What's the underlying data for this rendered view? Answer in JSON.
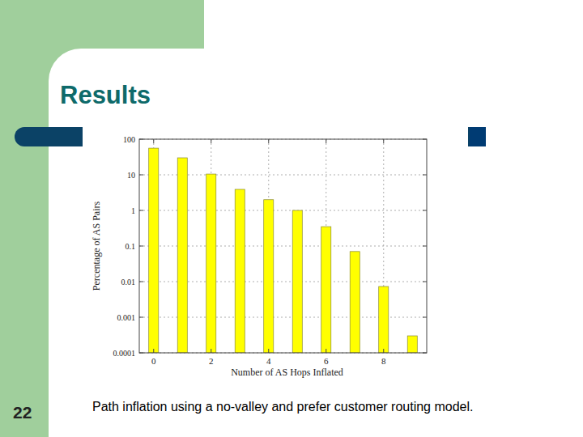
{
  "slide": {
    "title": "Results",
    "page_number": "22",
    "caption": "Path inflation using a no-valley and prefer customer routing model."
  },
  "chart_data": {
    "type": "bar",
    "log": "y",
    "grid": true,
    "color": "#ffff00",
    "x_label": "Number of AS Hops Inflated",
    "y_label": "Percentage of AS Pairs",
    "x": [
      0,
      1,
      2,
      3,
      4,
      5,
      6,
      7,
      8,
      9
    ],
    "values": [
      56,
      30,
      10.5,
      3.9,
      2.0,
      1.0,
      0.35,
      0.07,
      0.0073,
      0.0003
    ],
    "xlim": [
      -0.5,
      9.5
    ],
    "xticks": [
      0,
      2,
      4,
      6,
      8
    ],
    "ylim": [
      0.0001,
      100
    ],
    "yticks": [
      {
        "value": 0.0001,
        "label": "0.0001"
      },
      {
        "value": 0.001,
        "label": "0.001"
      },
      {
        "value": 0.01,
        "label": "0.01"
      },
      {
        "value": 0.1,
        "label": "0.1"
      },
      1,
      10,
      100
    ]
  }
}
